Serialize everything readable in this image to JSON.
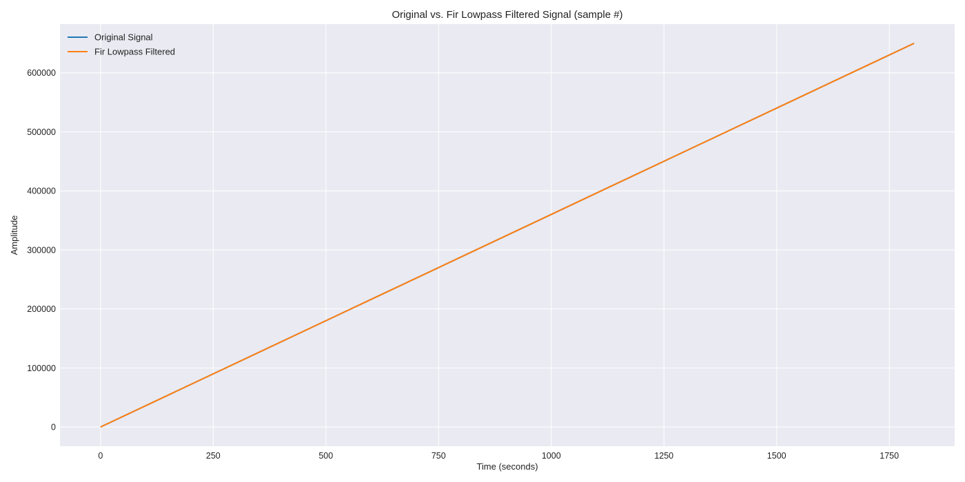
{
  "chart_data": {
    "type": "line",
    "title": "Original vs. Fir Lowpass Filtered Signal (sample #)",
    "xlabel": "Time (seconds)",
    "ylabel": "Amplitude",
    "xlim": [
      -90,
      1895
    ],
    "ylim": [
      -32500,
      682500
    ],
    "x_ticks": [
      0,
      250,
      500,
      750,
      1000,
      1250,
      1500,
      1750
    ],
    "x_tick_labels": [
      "0",
      "250",
      "500",
      "750",
      "1000",
      "1250",
      "1500",
      "1750"
    ],
    "y_ticks": [
      0,
      100000,
      200000,
      300000,
      400000,
      500000,
      600000
    ],
    "y_tick_labels": [
      "0",
      "100000",
      "200000",
      "300000",
      "400000",
      "500000",
      "600000"
    ],
    "grid": true,
    "legend_position": "top-left",
    "series": [
      {
        "name": "Original Signal",
        "color": "#1f77b4",
        "x": [
          0,
          1805
        ],
        "y": [
          0,
          650000
        ]
      },
      {
        "name": "Fir Lowpass Filtered",
        "color": "#ff7f0e",
        "x": [
          0,
          1805
        ],
        "y": [
          0,
          650000
        ]
      }
    ]
  },
  "colors": {
    "plot_background": "#eaeaf2",
    "grid": "#ffffff"
  }
}
